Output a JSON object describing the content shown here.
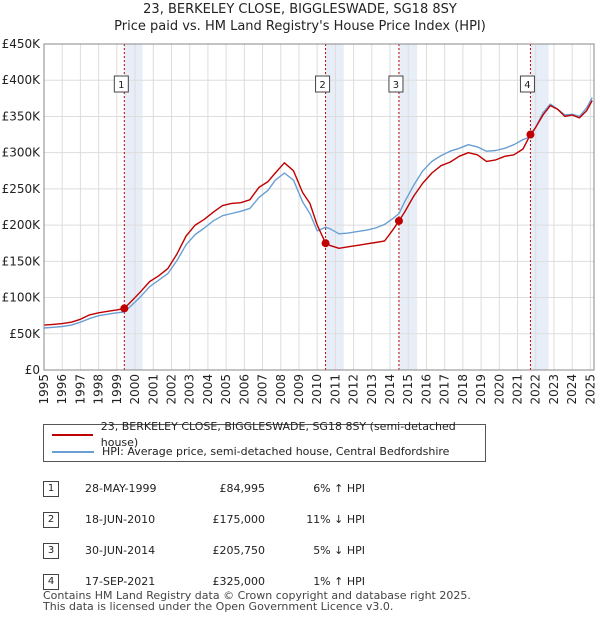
{
  "title_line1": "23, BERKELEY CLOSE, BIGGLESWADE, SG18 8SY",
  "title_line2": "Price paid vs. HM Land Registry's House Price Index (HPI)",
  "colors": {
    "property": "#c00000",
    "hpi": "#6a9fd4",
    "sale_band": "#e8eef8",
    "sale_line": "#c00000",
    "grid": "#dddddd"
  },
  "chart_data": {
    "type": "line",
    "title": "Price paid vs. HM Land Registry's House Price Index (HPI)",
    "xlabel": "",
    "ylabel": "",
    "xlim": [
      1995,
      2025.2
    ],
    "ylim": [
      0,
      450000
    ],
    "y_ticks": [
      0,
      50000,
      100000,
      150000,
      200000,
      250000,
      300000,
      350000,
      400000,
      450000
    ],
    "y_tick_labels": [
      "£0",
      "£50K",
      "£100K",
      "£150K",
      "£200K",
      "£250K",
      "£300K",
      "£350K",
      "£400K",
      "£450K"
    ],
    "x_ticks": [
      1995,
      1996,
      1997,
      1998,
      1999,
      2000,
      2001,
      2002,
      2003,
      2004,
      2005,
      2006,
      2007,
      2008,
      2009,
      2010,
      2011,
      2012,
      2013,
      2014,
      2015,
      2016,
      2017,
      2018,
      2019,
      2020,
      2021,
      2022,
      2023,
      2024,
      2025
    ],
    "x_tick_labels": [
      "1995",
      "1996",
      "1997",
      "1998",
      "1999",
      "2000",
      "2001",
      "2002",
      "2003",
      "2004",
      "2005",
      "2006",
      "2007",
      "2008",
      "2009",
      "2010",
      "2011",
      "2012",
      "2013",
      "2014",
      "2015",
      "2016",
      "2017",
      "2018",
      "2019",
      "2020",
      "2021",
      "2022",
      "2023",
      "2024",
      "2025"
    ],
    "legend_position": "below",
    "series": [
      {
        "name": "23, BERKELEY CLOSE, BIGGLESWADE, SG18 8SY (semi-detached house)",
        "color": "#c00000",
        "x": [
          1995.0,
          1995.5,
          1996.0,
          1996.5,
          1997.0,
          1997.5,
          1998.0,
          1998.5,
          1999.0,
          1999.41,
          1999.8,
          2000.3,
          2000.8,
          2001.3,
          2001.8,
          2002.3,
          2002.8,
          2003.3,
          2003.8,
          2004.3,
          2004.8,
          2005.3,
          2005.8,
          2006.3,
          2006.8,
          2007.3,
          2007.7,
          2008.2,
          2008.7,
          2009.2,
          2009.6,
          2010.0,
          2010.46,
          2010.7,
          2011.2,
          2011.7,
          2012.2,
          2012.7,
          2013.2,
          2013.7,
          2014.2,
          2014.49,
          2014.8,
          2015.3,
          2015.8,
          2016.3,
          2016.8,
          2017.3,
          2017.8,
          2018.3,
          2018.8,
          2019.3,
          2019.8,
          2020.3,
          2020.8,
          2021.3,
          2021.71,
          2022.0,
          2022.4,
          2022.8,
          2023.2,
          2023.6,
          2024.0,
          2024.4,
          2024.8,
          2025.1
        ],
        "values": [
          62000,
          63000,
          64000,
          66000,
          70000,
          76000,
          79000,
          81000,
          83000,
          84995,
          95000,
          108000,
          122000,
          130000,
          140000,
          160000,
          185000,
          200000,
          208000,
          218000,
          227000,
          230000,
          231000,
          235000,
          252000,
          260000,
          272000,
          286000,
          275000,
          245000,
          230000,
          200000,
          175000,
          172000,
          168000,
          170000,
          172000,
          174000,
          176000,
          178000,
          195000,
          205750,
          218000,
          240000,
          258000,
          272000,
          282000,
          287000,
          295000,
          300000,
          297000,
          288000,
          290000,
          295000,
          297000,
          305000,
          325000,
          335000,
          352000,
          365000,
          360000,
          350000,
          352000,
          348000,
          358000,
          372000
        ]
      },
      {
        "name": "HPI: Average price, semi-detached house, Central Bedfordshire",
        "color": "#6a9fd4",
        "x": [
          1995.0,
          1995.5,
          1996.0,
          1996.5,
          1997.0,
          1997.5,
          1998.0,
          1998.5,
          1999.0,
          1999.41,
          1999.8,
          2000.3,
          2000.8,
          2001.3,
          2001.8,
          2002.3,
          2002.8,
          2003.3,
          2003.8,
          2004.3,
          2004.8,
          2005.3,
          2005.8,
          2006.3,
          2006.8,
          2007.3,
          2007.7,
          2008.2,
          2008.7,
          2009.2,
          2009.6,
          2010.0,
          2010.46,
          2010.7,
          2011.2,
          2011.7,
          2012.2,
          2012.7,
          2013.2,
          2013.7,
          2014.2,
          2014.49,
          2014.8,
          2015.3,
          2015.8,
          2016.3,
          2016.8,
          2017.3,
          2017.8,
          2018.3,
          2018.8,
          2019.3,
          2019.8,
          2020.3,
          2020.8,
          2021.3,
          2021.71,
          2022.0,
          2022.4,
          2022.8,
          2023.2,
          2023.6,
          2024.0,
          2024.4,
          2024.8,
          2025.1
        ],
        "values": [
          58000,
          59000,
          60000,
          62000,
          66000,
          71000,
          75000,
          77000,
          79000,
          80000,
          89000,
          101000,
          115000,
          124000,
          133000,
          151000,
          173000,
          187000,
          196000,
          206000,
          213000,
          216000,
          219000,
          223000,
          238000,
          248000,
          262000,
          272000,
          262000,
          232000,
          216000,
          192000,
          197000,
          195000,
          188000,
          189000,
          191000,
          193000,
          196000,
          201000,
          210000,
          216000,
          232000,
          255000,
          275000,
          288000,
          296000,
          302000,
          306000,
          311000,
          308000,
          302000,
          303000,
          306000,
          311000,
          318000,
          322000,
          335000,
          355000,
          367000,
          360000,
          352000,
          353000,
          350000,
          362000,
          376000
        ]
      }
    ],
    "sale_markers": [
      {
        "label": "1",
        "x": 1999.41,
        "value": 84995
      },
      {
        "label": "2",
        "x": 2010.46,
        "value": 175000
      },
      {
        "label": "3",
        "x": 2014.49,
        "value": 205750
      },
      {
        "label": "4",
        "x": 2021.71,
        "value": 325000
      }
    ]
  },
  "legend": {
    "property_label": "23, BERKELEY CLOSE, BIGGLESWADE, SG18 8SY (semi-detached house)",
    "hpi_label": "HPI: Average price, semi-detached house, Central Bedfordshire"
  },
  "sales": [
    {
      "num": "1",
      "date": "28-MAY-1999",
      "price": "£84,995",
      "hpi": "6% ↑ HPI"
    },
    {
      "num": "2",
      "date": "18-JUN-2010",
      "price": "£175,000",
      "hpi": "11% ↓ HPI"
    },
    {
      "num": "3",
      "date": "30-JUN-2014",
      "price": "£205,750",
      "hpi": "5% ↓ HPI"
    },
    {
      "num": "4",
      "date": "17-SEP-2021",
      "price": "£325,000",
      "hpi": "1% ↑ HPI"
    }
  ],
  "footer_line1": "Contains HM Land Registry data © Crown copyright and database right 2025.",
  "footer_line2": "This data is licensed under the Open Government Licence v3.0."
}
